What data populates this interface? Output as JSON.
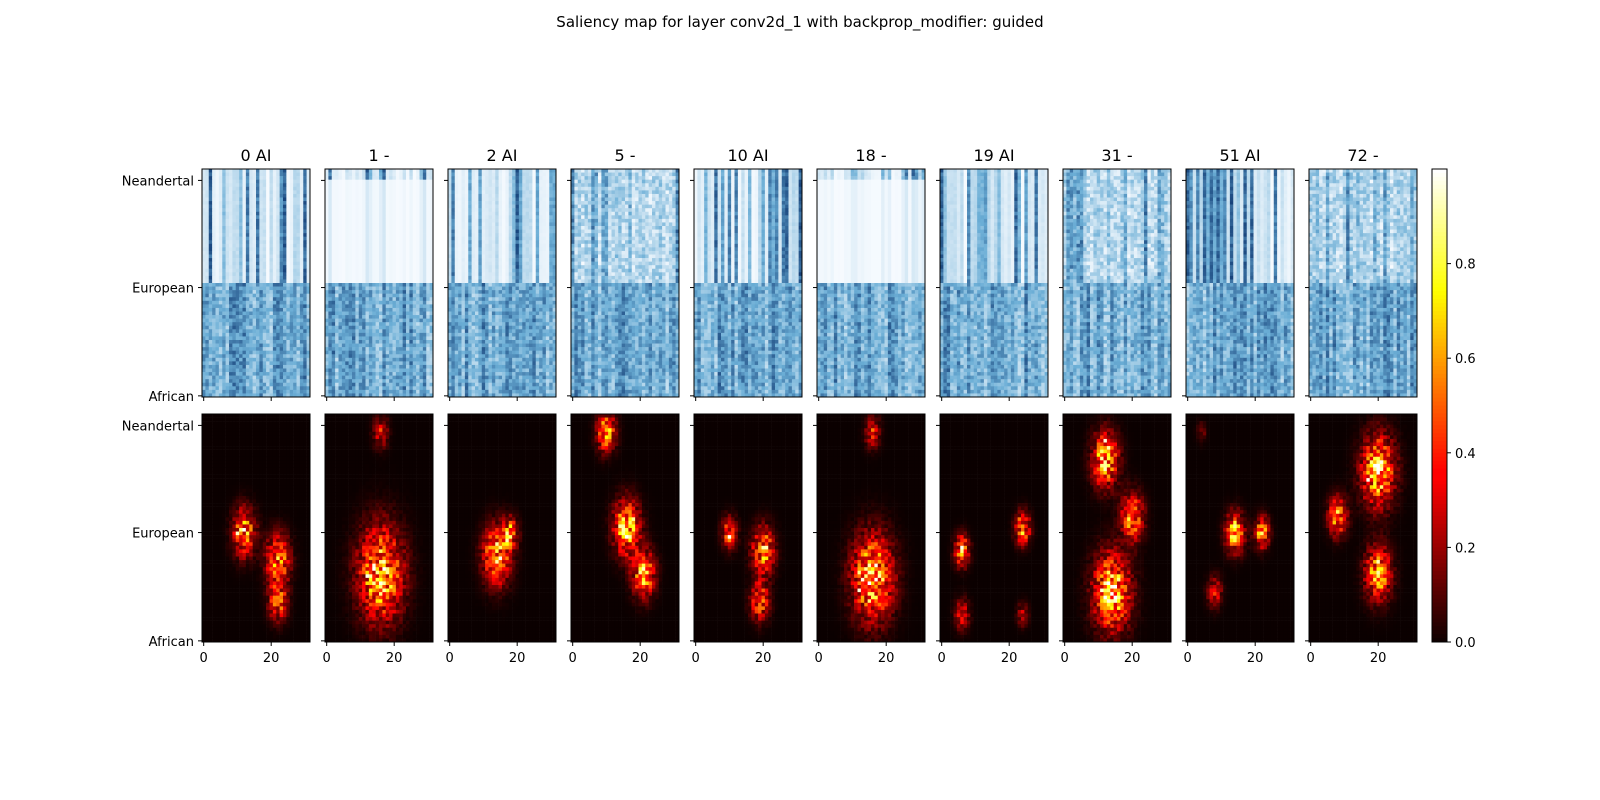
{
  "figure": {
    "suptitle": "Saliency map for layer conv2d_1 with backprop_modifier: guided"
  },
  "chart_data": {
    "type": "heatmap",
    "title": "Saliency map for layer conv2d_1 with backprop_modifier: guided",
    "panel_titles": [
      "0 AI",
      "1 -",
      "2 AI",
      "5 -",
      "10 AI",
      "18 -",
      "19 AI",
      "31 -",
      "51 AI",
      "72 -"
    ],
    "rows": [
      {
        "name": "input",
        "colormap": "Blues"
      },
      {
        "name": "saliency",
        "colormap": "hot"
      }
    ],
    "y_tick_labels": [
      "Neandertal",
      "European",
      "African"
    ],
    "x_ticks": [
      0,
      20
    ],
    "grid_shape": {
      "cols": 32,
      "rows": 64
    },
    "colorbar": {
      "colormap": "hot",
      "range": [
        0.0,
        1.0
      ],
      "ticks": [
        "0.0",
        "0.2",
        "0.4",
        "0.6",
        "0.8"
      ]
    },
    "saliency_hotspots": [
      [
        {
          "x": 12,
          "y": 0.52,
          "r": 0.12,
          "i": 0.9
        },
        {
          "x": 22,
          "y": 0.64,
          "r": 0.13,
          "i": 0.8
        },
        {
          "x": 22,
          "y": 0.82,
          "r": 0.1,
          "i": 0.7
        }
      ],
      [
        {
          "x": 16,
          "y": 0.08,
          "r": 0.08,
          "i": 0.45
        },
        {
          "x": 16,
          "y": 0.7,
          "r": 0.24,
          "i": 1.0
        }
      ],
      [
        {
          "x": 14,
          "y": 0.62,
          "r": 0.15,
          "i": 0.9
        },
        {
          "x": 18,
          "y": 0.52,
          "r": 0.08,
          "i": 0.7
        }
      ],
      [
        {
          "x": 10,
          "y": 0.08,
          "r": 0.1,
          "i": 0.85
        },
        {
          "x": 16,
          "y": 0.5,
          "r": 0.14,
          "i": 1.0
        },
        {
          "x": 21,
          "y": 0.7,
          "r": 0.12,
          "i": 0.9
        }
      ],
      [
        {
          "x": 10,
          "y": 0.52,
          "r": 0.08,
          "i": 0.7
        },
        {
          "x": 20,
          "y": 0.6,
          "r": 0.12,
          "i": 0.85
        },
        {
          "x": 19,
          "y": 0.82,
          "r": 0.1,
          "i": 0.7
        }
      ],
      [
        {
          "x": 16,
          "y": 0.08,
          "r": 0.08,
          "i": 0.5
        },
        {
          "x": 16,
          "y": 0.72,
          "r": 0.22,
          "i": 1.0
        }
      ],
      [
        {
          "x": 6,
          "y": 0.6,
          "r": 0.08,
          "i": 0.85
        },
        {
          "x": 24,
          "y": 0.5,
          "r": 0.08,
          "i": 0.9
        },
        {
          "x": 6,
          "y": 0.88,
          "r": 0.08,
          "i": 0.45
        },
        {
          "x": 24,
          "y": 0.88,
          "r": 0.06,
          "i": 0.35
        }
      ],
      [
        {
          "x": 12,
          "y": 0.2,
          "r": 0.14,
          "i": 0.95
        },
        {
          "x": 20,
          "y": 0.45,
          "r": 0.12,
          "i": 0.8
        },
        {
          "x": 14,
          "y": 0.78,
          "r": 0.2,
          "i": 1.0
        }
      ],
      [
        {
          "x": 14,
          "y": 0.52,
          "r": 0.1,
          "i": 0.95
        },
        {
          "x": 22,
          "y": 0.52,
          "r": 0.08,
          "i": 0.8
        },
        {
          "x": 8,
          "y": 0.78,
          "r": 0.08,
          "i": 0.45
        },
        {
          "x": 4,
          "y": 0.08,
          "r": 0.05,
          "i": 0.25
        }
      ],
      [
        {
          "x": 20,
          "y": 0.25,
          "r": 0.18,
          "i": 1.0
        },
        {
          "x": 8,
          "y": 0.45,
          "r": 0.1,
          "i": 0.8
        },
        {
          "x": 20,
          "y": 0.7,
          "r": 0.14,
          "i": 0.85
        }
      ]
    ]
  }
}
